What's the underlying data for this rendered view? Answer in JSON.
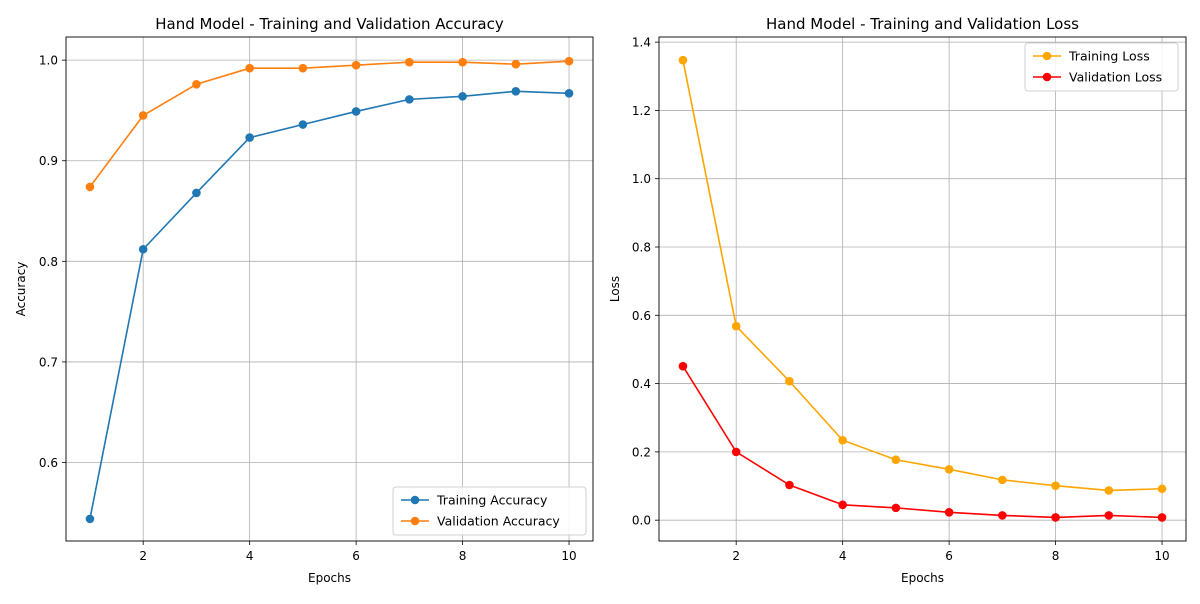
{
  "chart_data": [
    {
      "type": "line",
      "title": "Hand Model - Training and Validation Accuracy",
      "xlabel": "Epochs",
      "ylabel": "Accuracy",
      "xlim": [
        0.55,
        10.45
      ],
      "ylim": [
        0.522,
        1.023
      ],
      "xticks": [
        2,
        4,
        6,
        8,
        10
      ],
      "yticks": [
        0.6,
        0.7,
        0.8,
        0.9,
        1.0
      ],
      "grid": true,
      "legend": "lower right",
      "x": [
        1,
        2,
        3,
        4,
        5,
        6,
        7,
        8,
        9,
        10
      ],
      "series": [
        {
          "name": "Training Accuracy",
          "color": "#1f77b4",
          "values": [
            0.544,
            0.812,
            0.868,
            0.923,
            0.936,
            0.949,
            0.961,
            0.964,
            0.969,
            0.967
          ]
        },
        {
          "name": "Validation Accuracy",
          "color": "#ff7f0e",
          "values": [
            0.874,
            0.945,
            0.976,
            0.992,
            0.992,
            0.995,
            0.998,
            0.998,
            0.996,
            0.999
          ]
        }
      ]
    },
    {
      "type": "line",
      "title": "Hand Model - Training and Validation Loss",
      "xlabel": "Epochs",
      "ylabel": "Loss",
      "xlim": [
        0.55,
        10.45
      ],
      "ylim": [
        -0.061,
        1.415
      ],
      "xticks": [
        2,
        4,
        6,
        8,
        10
      ],
      "yticks": [
        0.0,
        0.2,
        0.4,
        0.6,
        0.8,
        1.0,
        1.2,
        1.4
      ],
      "grid": true,
      "legend": "upper right",
      "x": [
        1,
        2,
        3,
        4,
        5,
        6,
        7,
        8,
        9,
        10
      ],
      "series": [
        {
          "name": "Training Loss",
          "color": "#ffa500",
          "values": [
            1.347,
            0.568,
            0.407,
            0.234,
            0.177,
            0.149,
            0.118,
            0.101,
            0.087,
            0.092
          ]
        },
        {
          "name": "Validation Loss",
          "color": "#ff0000",
          "values": [
            0.451,
            0.2,
            0.103,
            0.045,
            0.036,
            0.023,
            0.014,
            0.008,
            0.014,
            0.008
          ]
        }
      ]
    }
  ]
}
